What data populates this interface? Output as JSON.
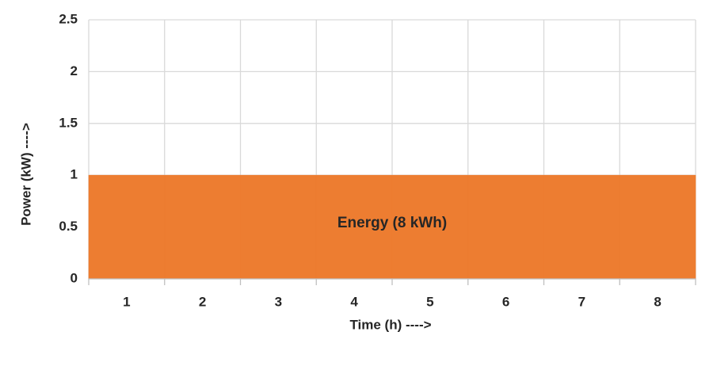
{
  "chart_data": {
    "type": "bar",
    "x_label": "Time (h) ---->",
    "y_label": "Power (kW) ---->",
    "annotation": "Energy (8 kWh)",
    "categories": [
      "1",
      "2",
      "3",
      "4",
      "5",
      "6",
      "7",
      "8"
    ],
    "values": [
      1,
      1,
      1,
      1,
      1,
      1,
      1,
      1
    ],
    "color": "#ed7d31",
    "ylim": [
      0,
      2.5
    ],
    "yticks": [
      0,
      0.5,
      1,
      1.5,
      2,
      2.5
    ],
    "grid": true
  }
}
